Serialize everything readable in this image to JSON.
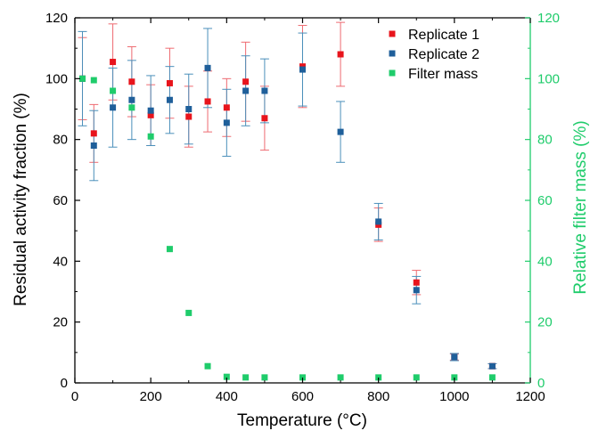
{
  "chart_data": {
    "type": "scatter",
    "xlabel": "Temperature (°C)",
    "ylabel": "Residual activity fraction (%)",
    "y2label": "Relative filter mass (%)",
    "xlim": [
      0,
      1200
    ],
    "ylim": [
      0,
      120
    ],
    "y2lim": [
      0,
      120
    ],
    "xticks": [
      0,
      200,
      400,
      600,
      800,
      1000,
      1200
    ],
    "yticks": [
      0,
      20,
      40,
      60,
      80,
      100,
      120
    ],
    "y2ticks": [
      0,
      20,
      40,
      60,
      80,
      100,
      120
    ],
    "legend_position": "top-right",
    "grid": false,
    "colors": {
      "replicate1": "#e8141c",
      "replicate1_error": "#ee6a70",
      "replicate2": "#1f5f9a",
      "replicate2_error": "#4a8fba",
      "filter": "#1fcc6b",
      "right_axis": "#1fcc6b",
      "axis": "#000000"
    },
    "series": [
      {
        "name": "Replicate 1",
        "axis": "left",
        "x": [
          20,
          50,
          100,
          150,
          200,
          250,
          300,
          350,
          400,
          450,
          500,
          600,
          700,
          800,
          900,
          1000,
          1100
        ],
        "y": [
          100,
          82,
          105.5,
          99,
          88,
          98.5,
          87.5,
          92.5,
          90.5,
          99,
          87,
          104,
          108,
          52,
          33,
          8.5,
          5.5
        ],
        "err": [
          13.5,
          9.5,
          12.5,
          11.5,
          10,
          11.5,
          10,
          10,
          9.5,
          13,
          10.5,
          13.5,
          10.5,
          5.5,
          4,
          1,
          0.8
        ]
      },
      {
        "name": "Replicate 2",
        "axis": "left",
        "x": [
          20,
          50,
          100,
          150,
          200,
          250,
          300,
          350,
          400,
          450,
          500,
          600,
          700,
          800,
          900,
          1000,
          1100
        ],
        "y": [
          100,
          78,
          90.5,
          93,
          89.5,
          93,
          90,
          103.5,
          85.5,
          96,
          96,
          103,
          82.5,
          53,
          30.5,
          8.5,
          5.5
        ],
        "err": [
          15.5,
          11.5,
          13,
          13,
          11.5,
          11,
          11.5,
          13,
          11,
          11.5,
          10.5,
          12,
          10,
          6,
          4.5,
          1.2,
          0.8
        ]
      },
      {
        "name": "Filter mass",
        "axis": "right",
        "x": [
          20,
          50,
          100,
          150,
          200,
          250,
          300,
          350,
          400,
          450,
          500,
          600,
          700,
          800,
          900,
          1000,
          1100
        ],
        "y": [
          100,
          99.5,
          96,
          90.5,
          81,
          44,
          23,
          5.5,
          2,
          1.8,
          1.8,
          1.8,
          1.8,
          1.8,
          1.8,
          1.8,
          1.8
        ]
      }
    ]
  }
}
